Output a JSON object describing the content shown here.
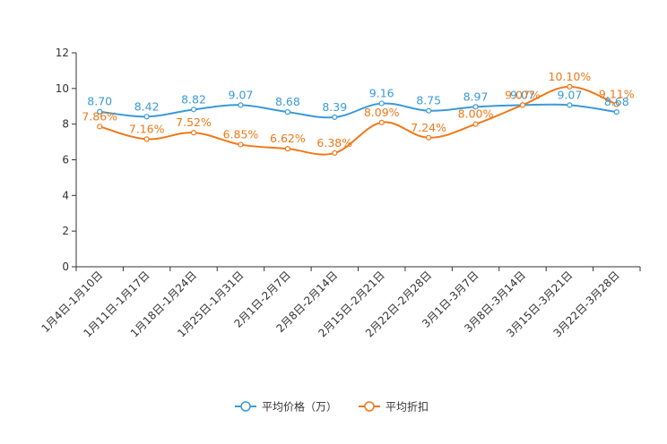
{
  "chart_data": {
    "type": "line",
    "title": "",
    "xlabel": "",
    "ylabel": "",
    "ylim": [
      0,
      12
    ],
    "yticks": [
      0,
      2,
      4,
      6,
      8,
      10,
      12
    ],
    "categories": [
      "1月4日-1月10日",
      "1月11日-1月17日",
      "1月18日-1月24日",
      "1月25日-1月31日",
      "2月1日-2月7日",
      "2月8日-2月14日",
      "2月15日-2月21日",
      "2月22日-2月28日",
      "3月1日-3月7日",
      "3月8日-3月14日",
      "3月15日-3月21日",
      "3月22日-3月28日"
    ],
    "series": [
      {
        "name": "平均价格（万）",
        "color": "#3a9ad9",
        "values": [
          8.7,
          8.42,
          8.82,
          9.07,
          8.68,
          8.39,
          9.16,
          8.75,
          8.97,
          9.07,
          9.07,
          8.68
        ],
        "labels": [
          "8.70",
          "8.42",
          "8.82",
          "9.07",
          "8.68",
          "8.39",
          "9.16",
          "8.75",
          "8.97",
          "9.07",
          "9.07",
          "8.68"
        ]
      },
      {
        "name": "平均折扣",
        "color": "#f07818",
        "values": [
          7.86,
          7.16,
          7.52,
          6.85,
          6.62,
          6.38,
          8.09,
          7.24,
          8.0,
          9.07,
          10.1,
          9.11
        ],
        "labels": [
          "7.86%",
          "7.16%",
          "7.52%",
          "6.85%",
          "6.62%",
          "6.38%",
          "8.09%",
          "7.24%",
          "8.00%",
          "9.07%",
          "10.10%",
          "9.11%"
        ]
      }
    ],
    "legend_position": "bottom-center"
  }
}
